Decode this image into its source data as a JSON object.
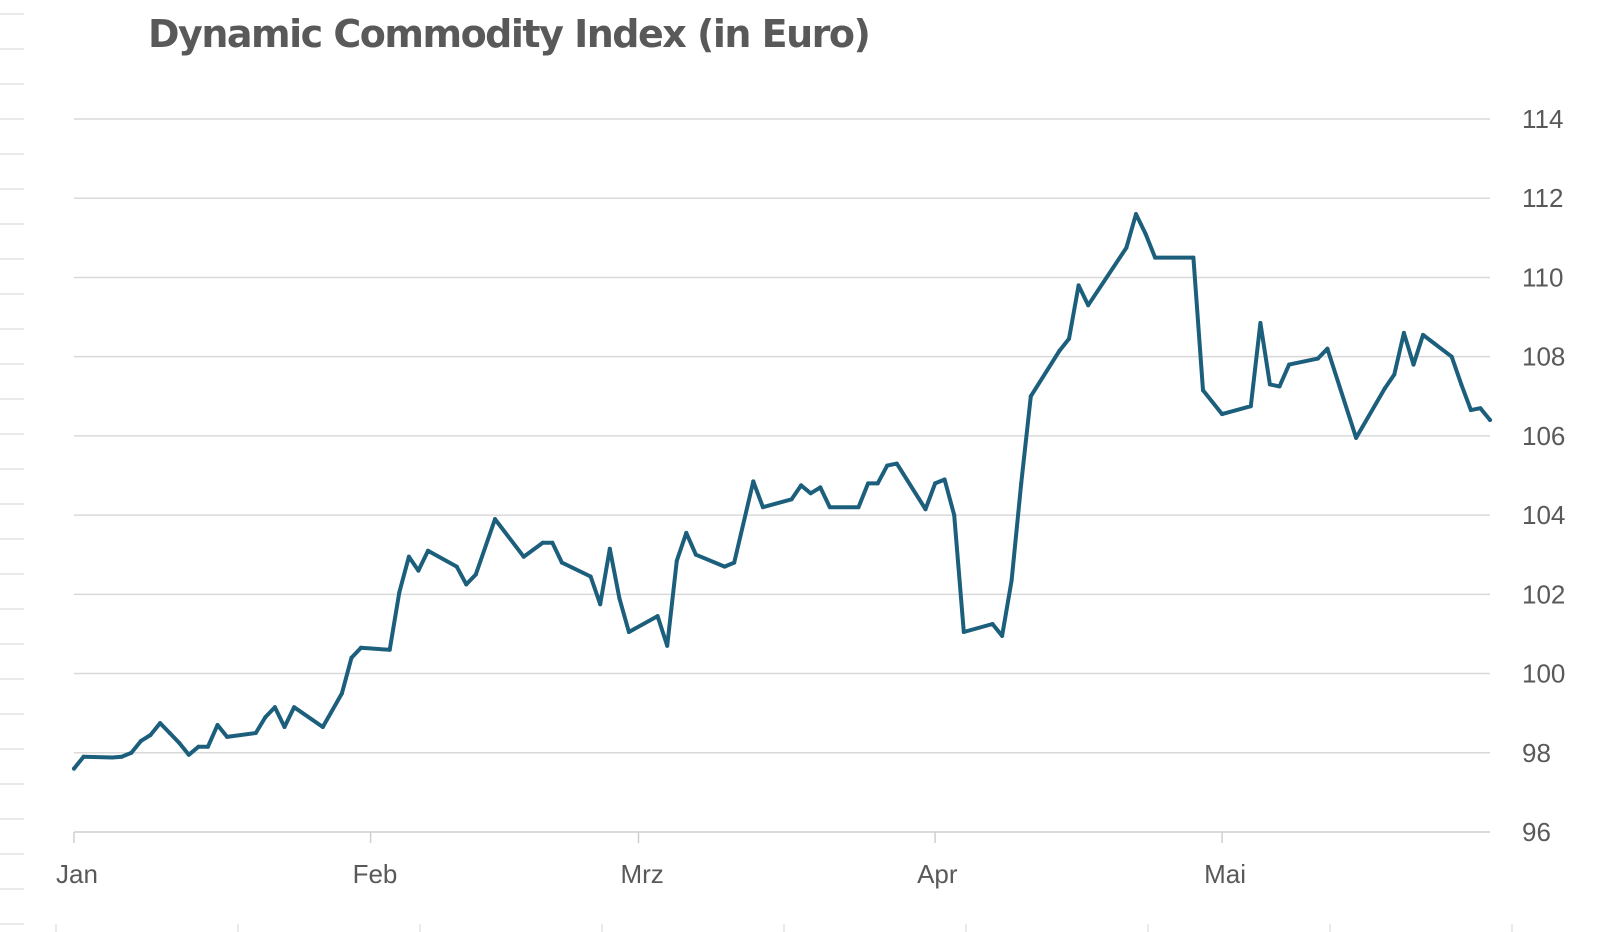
{
  "chart_data": {
    "type": "line",
    "title": "Dynamic Commodity Index (in Euro)",
    "xlabel": "",
    "ylabel": "",
    "ylim": [
      96,
      114
    ],
    "y_ticks": [
      "96",
      "98",
      "100",
      "102",
      "104",
      "106",
      "108",
      "110",
      "112",
      "114"
    ],
    "y_axis_position": "right",
    "x_ticks": [
      "Jan",
      "Feb",
      "Mrz",
      "Apr",
      "Mai"
    ],
    "grid": true,
    "legend": "none",
    "colors": {
      "line": "#1c5f7c",
      "grid": "#d9d9d9",
      "text": "#595959",
      "title": "#595959"
    },
    "x_unit": "days since Jan 1",
    "series": [
      {
        "points": [
          [
            0,
            97.6
          ],
          [
            1,
            97.9
          ],
          [
            4,
            97.88
          ],
          [
            5,
            97.9
          ],
          [
            6,
            98.0
          ],
          [
            7,
            98.3
          ],
          [
            8,
            98.45
          ],
          [
            9,
            98.75
          ],
          [
            10,
            98.5
          ],
          [
            11,
            98.25
          ],
          [
            12,
            97.95
          ],
          [
            13,
            98.15
          ],
          [
            14,
            98.15
          ],
          [
            15,
            98.7
          ],
          [
            16,
            98.4
          ],
          [
            19,
            98.5
          ],
          [
            20,
            98.9
          ],
          [
            21,
            99.15
          ],
          [
            22,
            98.65
          ],
          [
            23,
            99.15
          ],
          [
            26,
            98.65
          ],
          [
            28,
            99.5
          ],
          [
            29,
            100.4
          ],
          [
            30,
            100.65
          ],
          [
            33,
            100.6
          ],
          [
            34,
            102.05
          ],
          [
            35,
            102.95
          ],
          [
            36,
            102.6
          ],
          [
            37,
            103.1
          ],
          [
            40,
            102.7
          ],
          [
            41,
            102.25
          ],
          [
            42,
            102.5
          ],
          [
            44,
            103.9
          ],
          [
            47,
            102.95
          ],
          [
            49,
            103.3
          ],
          [
            50,
            103.3
          ],
          [
            51,
            102.8
          ],
          [
            54,
            102.45
          ],
          [
            55,
            101.75
          ],
          [
            56,
            103.15
          ],
          [
            57,
            101.9
          ],
          [
            58,
            101.05
          ],
          [
            61,
            101.45
          ],
          [
            62,
            100.7
          ],
          [
            63,
            102.85
          ],
          [
            64,
            103.55
          ],
          [
            65,
            103.0
          ],
          [
            68,
            102.7
          ],
          [
            69,
            102.8
          ],
          [
            71,
            104.85
          ],
          [
            72,
            104.2
          ],
          [
            75,
            104.4
          ],
          [
            76,
            104.75
          ],
          [
            77,
            104.55
          ],
          [
            78,
            104.7
          ],
          [
            79,
            104.2
          ],
          [
            82,
            104.2
          ],
          [
            83,
            104.8
          ],
          [
            84,
            104.8
          ],
          [
            85,
            105.25
          ],
          [
            86,
            105.3
          ],
          [
            89,
            104.15
          ],
          [
            90,
            104.8
          ],
          [
            91,
            104.9
          ],
          [
            92,
            104.0
          ],
          [
            93,
            101.05
          ],
          [
            96,
            101.25
          ],
          [
            97,
            100.95
          ],
          [
            98,
            102.35
          ],
          [
            99,
            104.8
          ],
          [
            100,
            107.0
          ],
          [
            103,
            108.15
          ],
          [
            104,
            108.45
          ],
          [
            105,
            109.8
          ],
          [
            106,
            109.3
          ],
          [
            110,
            110.75
          ],
          [
            111,
            111.6
          ],
          [
            112,
            111.1
          ],
          [
            113,
            110.5
          ],
          [
            117,
            110.5
          ],
          [
            118,
            107.15
          ],
          [
            120,
            106.55
          ],
          [
            123,
            106.75
          ],
          [
            124,
            108.85
          ],
          [
            125,
            107.3
          ],
          [
            126,
            107.25
          ],
          [
            127,
            107.8
          ],
          [
            130,
            107.95
          ],
          [
            131,
            108.2
          ],
          [
            134,
            105.95
          ],
          [
            137,
            107.2
          ],
          [
            138,
            107.55
          ],
          [
            139,
            108.6
          ],
          [
            140,
            107.8
          ],
          [
            141,
            108.55
          ],
          [
            144,
            108.0
          ],
          [
            145,
            107.3
          ],
          [
            146,
            106.65
          ],
          [
            147,
            106.7
          ],
          [
            148,
            106.4
          ]
        ]
      }
    ]
  }
}
